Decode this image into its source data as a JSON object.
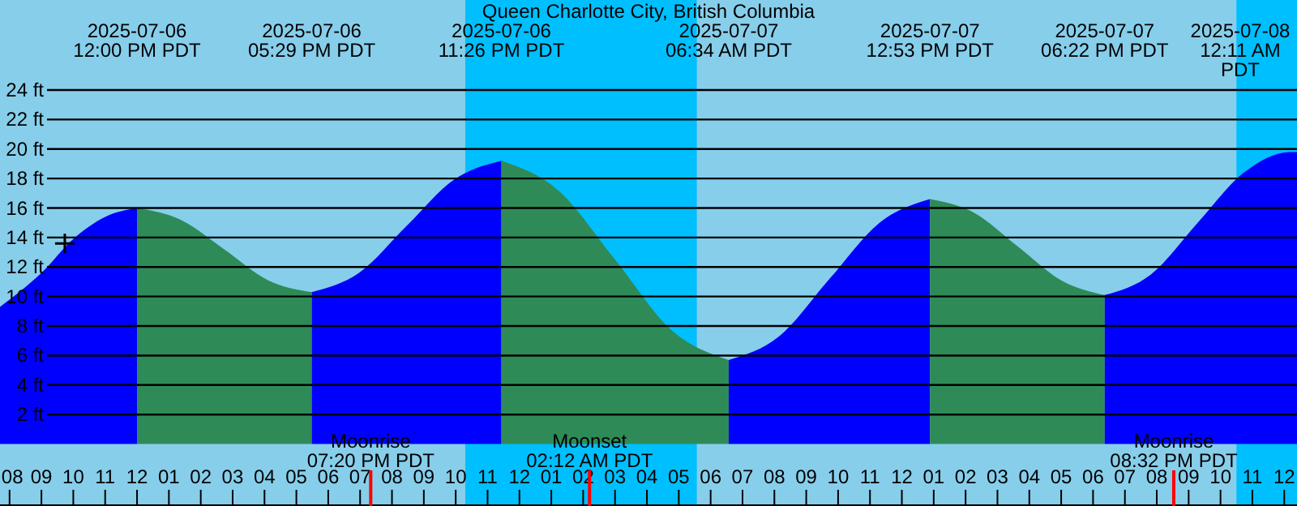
{
  "chart_data": {
    "type": "area",
    "title": "Queen Charlotte City, British Columbia",
    "xlim": [
      "2025-07-06T07:42",
      "2025-07-08T00:24"
    ],
    "ylim": [
      -4.2,
      30.1
    ],
    "xticks": [
      {
        "value": "2025-07-06T08:00",
        "label": "08"
      },
      {
        "value": "2025-07-06T09:00",
        "label": "09"
      },
      {
        "value": "2025-07-06T10:00",
        "label": "10"
      },
      {
        "value": "2025-07-06T11:00",
        "label": "11"
      },
      {
        "value": "2025-07-06T12:00",
        "label": "12"
      },
      {
        "value": "2025-07-06T13:00",
        "label": "01"
      },
      {
        "value": "2025-07-06T14:00",
        "label": "02"
      },
      {
        "value": "2025-07-06T15:00",
        "label": "03"
      },
      {
        "value": "2025-07-06T16:00",
        "label": "04"
      },
      {
        "value": "2025-07-06T17:00",
        "label": "05"
      },
      {
        "value": "2025-07-06T18:00",
        "label": "06"
      },
      {
        "value": "2025-07-06T19:00",
        "label": "07"
      },
      {
        "value": "2025-07-06T20:00",
        "label": "08"
      },
      {
        "value": "2025-07-06T21:00",
        "label": "09"
      },
      {
        "value": "2025-07-06T22:00",
        "label": "10"
      },
      {
        "value": "2025-07-06T23:00",
        "label": "11"
      },
      {
        "value": "2025-07-07T00:00",
        "label": "12"
      },
      {
        "value": "2025-07-07T01:00",
        "label": "01"
      },
      {
        "value": "2025-07-07T02:00",
        "label": "02"
      },
      {
        "value": "2025-07-07T03:00",
        "label": "03"
      },
      {
        "value": "2025-07-07T04:00",
        "label": "04"
      },
      {
        "value": "2025-07-07T05:00",
        "label": "05"
      },
      {
        "value": "2025-07-07T06:00",
        "label": "06"
      },
      {
        "value": "2025-07-07T07:00",
        "label": "07"
      },
      {
        "value": "2025-07-07T08:00",
        "label": "08"
      },
      {
        "value": "2025-07-07T09:00",
        "label": "09"
      },
      {
        "value": "2025-07-07T10:00",
        "label": "10"
      },
      {
        "value": "2025-07-07T11:00",
        "label": "11"
      },
      {
        "value": "2025-07-07T12:00",
        "label": "12"
      },
      {
        "value": "2025-07-07T13:00",
        "label": "01"
      },
      {
        "value": "2025-07-07T14:00",
        "label": "02"
      },
      {
        "value": "2025-07-07T15:00",
        "label": "03"
      },
      {
        "value": "2025-07-07T16:00",
        "label": "04"
      },
      {
        "value": "2025-07-07T17:00",
        "label": "05"
      },
      {
        "value": "2025-07-07T18:00",
        "label": "06"
      },
      {
        "value": "2025-07-07T19:00",
        "label": "07"
      },
      {
        "value": "2025-07-07T20:00",
        "label": "08"
      },
      {
        "value": "2025-07-07T21:00",
        "label": "09"
      },
      {
        "value": "2025-07-07T22:00",
        "label": "10"
      },
      {
        "value": "2025-07-07T23:00",
        "label": "11"
      },
      {
        "value": "2025-07-08T00:00",
        "label": "12"
      }
    ],
    "x2lim": [
      "2025-07-06T07:42",
      "2025-07-08T00:24"
    ],
    "x2ticks": [
      {
        "value": "2025-07-06T12:00",
        "label": "2025-07-06\n12:00 PM PDT"
      },
      {
        "value": "2025-07-06T17:29",
        "label": "2025-07-06\n05:29 PM PDT"
      },
      {
        "value": "2025-07-06T23:26",
        "label": "2025-07-06\n11:26 PM PDT"
      },
      {
        "value": "2025-07-07T06:34",
        "label": "2025-07-07\n06:34 AM PDT"
      },
      {
        "value": "2025-07-07T12:53",
        "label": "2025-07-07\n12:53 PM PDT"
      },
      {
        "value": "2025-07-07T18:22",
        "label": "2025-07-07\n06:22 PM PDT"
      },
      {
        "value": "2025-07-08T00:11",
        "label": "2025-07-08\n12:11 AM PDT"
      }
    ],
    "yticks": [
      {
        "value": 2,
        "label": "2 ft"
      },
      {
        "value": 4,
        "label": "4 ft"
      },
      {
        "value": 6,
        "label": "6 ft"
      },
      {
        "value": 8,
        "label": "8 ft"
      },
      {
        "value": 10,
        "label": "10 ft"
      },
      {
        "value": 12,
        "label": "12 ft"
      },
      {
        "value": 14,
        "label": "14 ft"
      },
      {
        "value": 16,
        "label": "16 ft"
      },
      {
        "value": 18,
        "label": "18 ft"
      },
      {
        "value": 20,
        "label": "20 ft"
      },
      {
        "value": 22,
        "label": "22 ft"
      },
      {
        "value": 24,
        "label": "24 ft"
      }
    ],
    "grid": "y",
    "series": [
      {
        "color": "#0000ff",
        "x": [
          "2025-07-06T07:42",
          "2025-07-06T09:00",
          "2025-07-06T10:00",
          "2025-07-06T11:00",
          "2025-07-06T12:00"
        ],
        "values": [
          9.3,
          11.6,
          13.9,
          15.4,
          16.0
        ]
      },
      {
        "color": "#2e8b57",
        "x": [
          "2025-07-06T12:00",
          "2025-07-06T13:22",
          "2025-07-06T14:44",
          "2025-07-06T16:07",
          "2025-07-06T17:29"
        ],
        "values": [
          16.0,
          15.2,
          13.2,
          11.1,
          10.3
        ]
      },
      {
        "color": "#0000ff",
        "x": [
          "2025-07-06T17:29",
          "2025-07-06T18:58",
          "2025-07-06T20:28",
          "2025-07-06T21:56",
          "2025-07-06T23:26"
        ],
        "values": [
          10.3,
          11.6,
          14.8,
          17.9,
          19.2
        ]
      },
      {
        "color": "#2e8b57",
        "x": [
          "2025-07-06T23:26",
          "2025-07-07T01:13",
          "2025-07-07T03:00",
          "2025-07-07T04:47",
          "2025-07-07T06:34"
        ],
        "values": [
          19.2,
          17.2,
          12.5,
          7.7,
          5.7
        ]
      },
      {
        "color": "#0000ff",
        "x": [
          "2025-07-07T06:34",
          "2025-07-07T08:09",
          "2025-07-07T09:44",
          "2025-07-07T11:18",
          "2025-07-07T12:53"
        ],
        "values": [
          5.7,
          7.3,
          11.2,
          15.0,
          16.6
        ]
      },
      {
        "color": "#2e8b57",
        "x": [
          "2025-07-07T12:53",
          "2025-07-07T14:15",
          "2025-07-07T15:38",
          "2025-07-07T17:00",
          "2025-07-07T18:22"
        ],
        "values": [
          16.6,
          15.7,
          13.4,
          11.1,
          10.1
        ]
      },
      {
        "color": "#0000ff",
        "x": [
          "2025-07-07T18:22",
          "2025-07-07T19:49",
          "2025-07-07T21:17",
          "2025-07-07T22:44",
          "2025-07-08T00:11",
          "2025-07-08T00:24"
        ],
        "values": [
          10.1,
          11.5,
          15.0,
          18.4,
          19.8,
          19.8
        ]
      },
      {
        "type": "scatter",
        "marker": "cross",
        "color": "#000000",
        "x": [
          "2025-07-06T09:44"
        ],
        "values": [
          13.6
        ]
      }
    ],
    "bands": [
      {
        "axis": "x",
        "from": "2025-07-06T22:18",
        "to": "2025-07-07T05:34",
        "color": "#00bfff"
      },
      {
        "axis": "x",
        "from": "2025-07-07T22:30",
        "to": "2025-07-08T00:24",
        "color": "#00bfff"
      }
    ],
    "ref_lines": [
      {
        "axis": "x",
        "value": "2025-07-06T19:20",
        "label": "Moonrise\n07:20 PM PDT",
        "color": "#ff0000"
      },
      {
        "axis": "x",
        "value": "2025-07-07T02:12",
        "label": "Moonset\n02:12 AM PDT",
        "color": "#ff0000"
      },
      {
        "axis": "x",
        "value": "2025-07-07T20:32",
        "label": "Moonrise\n08:32 PM PDT",
        "color": "#ff0000"
      }
    ]
  }
}
